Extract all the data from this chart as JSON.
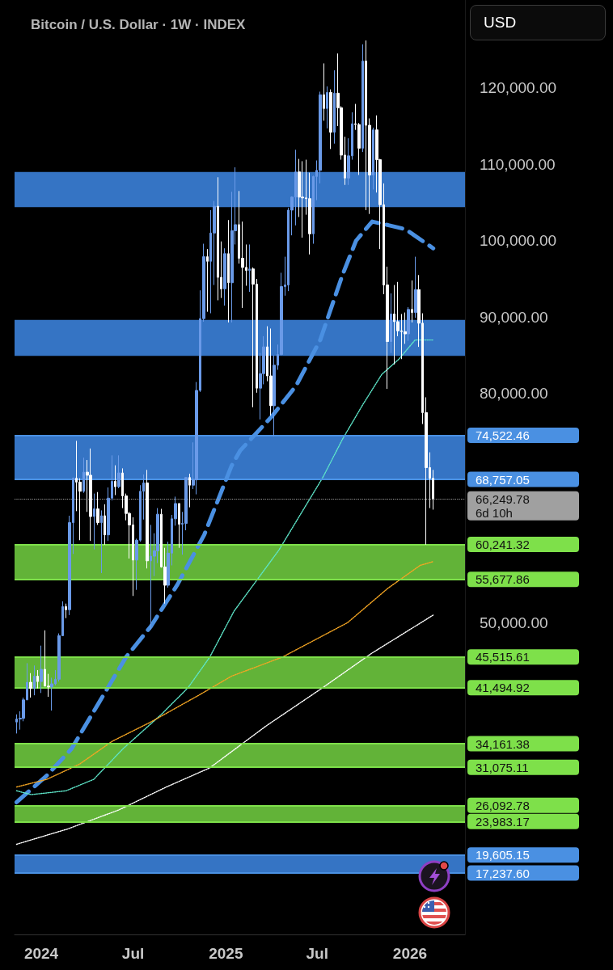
{
  "chart_data": {
    "type": "candlestick",
    "title": "Bitcoin / U.S. Dollar · 1W · INDEX",
    "annotations": [
      "USD"
    ],
    "grid": false,
    "x": [
      "2023-11-13",
      "2023-11-20",
      "2023-11-27",
      "2023-12-04",
      "2023-12-11",
      "2023-12-18",
      "2023-12-25",
      "2024-01-01",
      "2024-01-08",
      "2024-01-15",
      "2024-01-22",
      "2024-01-29",
      "2024-02-05",
      "2024-02-12",
      "2024-02-19",
      "2024-02-26",
      "2024-03-04",
      "2024-03-11",
      "2024-03-18",
      "2024-03-25",
      "2024-04-01",
      "2024-04-08",
      "2024-04-15",
      "2024-04-22",
      "2024-04-29",
      "2024-05-06",
      "2024-05-13",
      "2024-05-20",
      "2024-05-27",
      "2024-06-03",
      "2024-06-10",
      "2024-06-17",
      "2024-06-24",
      "2024-07-01",
      "2024-07-08",
      "2024-07-15",
      "2024-07-22",
      "2024-07-29",
      "2024-08-05",
      "2024-08-12",
      "2024-08-19",
      "2024-08-26",
      "2024-09-02",
      "2024-09-09",
      "2024-09-16",
      "2024-09-23",
      "2024-09-30",
      "2024-10-07",
      "2024-10-14",
      "2024-10-21",
      "2024-10-28",
      "2024-11-04",
      "2024-11-11",
      "2024-11-18",
      "2024-11-25",
      "2024-12-02",
      "2024-12-09",
      "2024-12-16",
      "2024-12-23",
      "2024-12-30",
      "2025-01-06",
      "2025-01-13",
      "2025-01-20",
      "2025-01-27",
      "2025-02-03",
      "2025-02-10",
      "2025-02-17",
      "2025-02-24",
      "2025-03-03",
      "2025-03-10",
      "2025-03-17",
      "2025-03-24",
      "2025-03-31",
      "2025-04-07",
      "2025-04-14",
      "2025-04-21",
      "2025-04-28",
      "2025-05-05",
      "2025-05-12",
      "2025-05-19",
      "2025-05-26",
      "2025-06-02",
      "2025-06-09",
      "2025-06-16",
      "2025-06-23",
      "2025-06-30",
      "2025-07-07",
      "2025-07-14",
      "2025-07-21",
      "2025-07-28",
      "2025-08-04",
      "2025-08-11",
      "2025-08-18",
      "2025-08-25",
      "2025-09-01",
      "2025-09-08",
      "2025-09-15",
      "2025-09-22",
      "2025-09-29",
      "2025-10-06",
      "2025-10-13",
      "2025-10-20",
      "2025-10-27",
      "2025-11-03",
      "2025-11-10",
      "2025-11-17",
      "2025-11-24",
      "2025-12-01",
      "2025-12-08",
      "2025-12-15",
      "2025-12-22",
      "2025-12-29",
      "2026-01-05",
      "2026-01-12",
      "2026-01-19",
      "2026-01-26",
      "2026-02-02",
      "2026-02-09",
      "2026-02-16"
    ],
    "ohlc": [
      [
        37000,
        38000,
        35500,
        37400
      ],
      [
        37400,
        38400,
        36000,
        37500
      ],
      [
        37500,
        40200,
        37100,
        39900
      ],
      [
        39900,
        44700,
        39900,
        42200
      ],
      [
        42200,
        43400,
        40200,
        41400
      ],
      [
        41400,
        44400,
        40500,
        43000
      ],
      [
        43000,
        43800,
        41400,
        42300
      ],
      [
        42300,
        47000,
        40800,
        43900
      ],
      [
        43900,
        49000,
        41700,
        41700
      ],
      [
        41700,
        43300,
        40300,
        41600
      ],
      [
        41600,
        42800,
        38500,
        42000
      ],
      [
        42000,
        43800,
        41800,
        42600
      ],
      [
        42600,
        48600,
        42300,
        48300
      ],
      [
        48300,
        52800,
        48300,
        52100
      ],
      [
        52100,
        52500,
        50600,
        51700
      ],
      [
        51700,
        64000,
        51000,
        63100
      ],
      [
        63100,
        69000,
        59000,
        68900
      ],
      [
        68900,
        73800,
        64600,
        68400
      ],
      [
        68400,
        68900,
        60800,
        67200
      ],
      [
        67200,
        71600,
        67000,
        69700
      ],
      [
        69700,
        71300,
        64500,
        69300
      ],
      [
        69300,
        72800,
        60700,
        63900
      ],
      [
        63900,
        66900,
        59600,
        64900
      ],
      [
        64900,
        67100,
        62800,
        63100
      ],
      [
        63100,
        64700,
        56500,
        64000
      ],
      [
        64000,
        65500,
        60200,
        61500
      ],
      [
        61500,
        67700,
        60700,
        66300
      ],
      [
        66300,
        71900,
        66000,
        68500
      ],
      [
        68500,
        70600,
        66700,
        67800
      ],
      [
        67800,
        71900,
        67600,
        69600
      ],
      [
        69600,
        70200,
        65000,
        66600
      ],
      [
        66600,
        66900,
        63400,
        64300
      ],
      [
        64300,
        64500,
        58400,
        62800
      ],
      [
        62800,
        63800,
        53500,
        58200
      ],
      [
        58200,
        61000,
        54300,
        60800
      ],
      [
        60800,
        68000,
        60600,
        67200
      ],
      [
        67200,
        69400,
        63500,
        68300
      ],
      [
        68300,
        70000,
        57100,
        58100
      ],
      [
        58100,
        62800,
        49100,
        58700
      ],
      [
        58700,
        61700,
        56100,
        59400
      ],
      [
        59400,
        65000,
        57800,
        64200
      ],
      [
        64200,
        64900,
        57200,
        57300
      ],
      [
        57300,
        59800,
        52500,
        54900
      ],
      [
        54900,
        60600,
        54600,
        59100
      ],
      [
        59100,
        64100,
        57500,
        63600
      ],
      [
        63600,
        66500,
        62700,
        65600
      ],
      [
        65600,
        65600,
        59800,
        62900
      ],
      [
        62900,
        64500,
        58900,
        63000
      ],
      [
        63000,
        69000,
        62100,
        69000
      ],
      [
        69000,
        69500,
        65100,
        68000
      ],
      [
        68000,
        73600,
        67500,
        68700
      ],
      [
        68700,
        81500,
        66800,
        80400
      ],
      [
        80400,
        93500,
        80200,
        89800
      ],
      [
        89800,
        99600,
        89400,
        97900
      ],
      [
        97900,
        98900,
        90700,
        97300
      ],
      [
        97300,
        104000,
        90500,
        101000
      ],
      [
        101000,
        105200,
        94200,
        104500
      ],
      [
        104500,
        108300,
        92200,
        95200
      ],
      [
        95200,
        99900,
        92500,
        93700
      ],
      [
        93700,
        99000,
        91500,
        98300
      ],
      [
        98300,
        102700,
        89300,
        94500
      ],
      [
        94500,
        106400,
        89300,
        101300
      ],
      [
        101300,
        109600,
        99500,
        102100
      ],
      [
        102100,
        106500,
        97000,
        97700
      ],
      [
        97700,
        102500,
        91200,
        96500
      ],
      [
        96500,
        99500,
        94100,
        96100
      ],
      [
        96100,
        99500,
        93300,
        96300
      ],
      [
        96300,
        96500,
        78200,
        94300
      ],
      [
        94300,
        95000,
        80100,
        80700
      ],
      [
        80700,
        85300,
        76600,
        82600
      ],
      [
        82600,
        87500,
        81200,
        86100
      ],
      [
        86100,
        88800,
        81600,
        82300
      ],
      [
        82300,
        88500,
        77100,
        78400
      ],
      [
        78400,
        85000,
        74400,
        83700
      ],
      [
        83700,
        86400,
        83100,
        85100
      ],
      [
        85100,
        95800,
        85000,
        94000
      ],
      [
        94000,
        97900,
        92800,
        94200
      ],
      [
        94200,
        104300,
        93400,
        104000
      ],
      [
        104000,
        105800,
        100700,
        105700
      ],
      [
        105700,
        111900,
        102000,
        109000
      ],
      [
        109000,
        110700,
        103100,
        105700
      ],
      [
        105700,
        110400,
        100400,
        105600
      ],
      [
        105600,
        110600,
        103400,
        105500
      ],
      [
        105500,
        108900,
        98200,
        100900
      ],
      [
        100900,
        108500,
        99600,
        108400
      ],
      [
        108400,
        110500,
        105300,
        109200
      ],
      [
        109200,
        119500,
        107500,
        119100
      ],
      [
        119100,
        123200,
        115700,
        117300
      ],
      [
        117300,
        120200,
        114700,
        119400
      ],
      [
        119400,
        119800,
        112000,
        114200
      ],
      [
        114200,
        122300,
        112700,
        119300
      ],
      [
        119300,
        124500,
        115000,
        117400
      ],
      [
        117400,
        117600,
        110600,
        111200
      ],
      [
        111200,
        113600,
        107300,
        108200
      ],
      [
        108200,
        113400,
        107300,
        111100
      ],
      [
        111100,
        116800,
        110600,
        115300
      ],
      [
        115300,
        117900,
        114500,
        115200
      ],
      [
        115200,
        115400,
        108600,
        112100
      ],
      [
        112100,
        125700,
        111600,
        123500
      ],
      [
        123500,
        126200,
        104000,
        115100
      ],
      [
        115100,
        116000,
        103500,
        108600
      ],
      [
        108600,
        114800,
        106700,
        114500
      ],
      [
        114500,
        116400,
        106300,
        110600
      ],
      [
        110600,
        110700,
        98900,
        104700
      ],
      [
        104700,
        107500,
        93000,
        94200
      ],
      [
        94200,
        96600,
        80600,
        86800
      ],
      [
        86800,
        93100,
        85300,
        90400
      ],
      [
        90400,
        94200,
        83800,
        89400
      ],
      [
        89400,
        94600,
        87500,
        88200
      ],
      [
        88200,
        90400,
        84500,
        88100
      ],
      [
        88100,
        90600,
        86500,
        87800
      ],
      [
        87800,
        91300,
        86900,
        91000
      ],
      [
        91000,
        94800,
        89300,
        90600
      ],
      [
        90600,
        97900,
        89900,
        93600
      ],
      [
        93600,
        95500,
        86100,
        89200
      ],
      [
        89200,
        90500,
        76000,
        77500
      ],
      [
        77500,
        79500,
        60200,
        70300
      ],
      [
        70300,
        72300,
        65000,
        68900
      ],
      [
        68900,
        70000,
        64800,
        66249.78
      ]
    ],
    "colors": [
      "#6a9ae8",
      "#6a9ae8",
      "#6a9ae8",
      "#6a9ae8",
      "#ffffff",
      "#6a9ae8",
      "#ffffff",
      "#6a9ae8",
      "#ffffff",
      "#ffffff",
      "#6a9ae8",
      "#6a9ae8",
      "#6a9ae8",
      "#6a9ae8",
      "#ffffff",
      "#6a9ae8",
      "#6a9ae8",
      "#ffffff",
      "#ffffff",
      "#6a9ae8",
      "#ffffff",
      "#ffffff",
      "#6a9ae8",
      "#ffffff",
      "#6a9ae8",
      "#ffffff",
      "#6a9ae8",
      "#6a9ae8",
      "#ffffff",
      "#6a9ae8",
      "#ffffff",
      "#ffffff",
      "#ffffff",
      "#ffffff",
      "#6a9ae8",
      "#6a9ae8",
      "#6a9ae8",
      "#ffffff",
      "#6a9ae8",
      "#6a9ae8",
      "#6a9ae8",
      "#ffffff",
      "#ffffff",
      "#6a9ae8",
      "#6a9ae8",
      "#6a9ae8",
      "#ffffff",
      "#6a9ae8",
      "#6a9ae8",
      "#ffffff",
      "#6a9ae8",
      "#6a9ae8",
      "#6a9ae8",
      "#6a9ae8",
      "#ffffff",
      "#6a9ae8",
      "#6a9ae8",
      "#ffffff",
      "#ffffff",
      "#6a9ae8",
      "#ffffff",
      "#6a9ae8",
      "#6a9ae8",
      "#ffffff",
      "#ffffff",
      "#ffffff",
      "#6a9ae8",
      "#ffffff",
      "#ffffff",
      "#6a9ae8",
      "#6a9ae8",
      "#ffffff",
      "#ffffff",
      "#6a9ae8",
      "#6a9ae8",
      "#6a9ae8",
      "#6a9ae8",
      "#6a9ae8",
      "#6a9ae8",
      "#6a9ae8",
      "#ffffff",
      "#ffffff",
      "#ffffff",
      "#ffffff",
      "#6a9ae8",
      "#6a9ae8",
      "#6a9ae8",
      "#ffffff",
      "#6a9ae8",
      "#ffffff",
      "#6a9ae8",
      "#ffffff",
      "#ffffff",
      "#ffffff",
      "#6a9ae8",
      "#6a9ae8",
      "#ffffff",
      "#ffffff",
      "#6a9ae8",
      "#ffffff",
      "#ffffff",
      "#6a9ae8",
      "#ffffff",
      "#ffffff",
      "#ffffff",
      "#ffffff",
      "#6a9ae8",
      "#ffffff",
      "#ffffff",
      "#ffffff",
      "#ffffff",
      "#6a9ae8",
      "#ffffff",
      "#6a9ae8",
      "#ffffff",
      "#ffffff",
      "#ffffff",
      "#ffffff",
      "#ffffff"
    ],
    "series": [
      {
        "type": "line",
        "color": "#4a90e2",
        "line_style": "dashed",
        "x": [
          "2023-11-13",
          "2024-01-12",
          "2024-03-01",
          "2024-04-24",
          "2024-06-17",
          "2024-08-05",
          "2024-09-27",
          "2024-11-19",
          "2025-01-12",
          "2025-01-29",
          "2025-04-02",
          "2025-05-20",
          "2025-07-07",
          "2025-08-20",
          "2025-09-16",
          "2025-10-18",
          "2025-11-21",
          "2025-12-23",
          "2026-02-16"
        ],
        "values": [
          26500,
          30000,
          33500,
          39500,
          45500,
          49500,
          55000,
          61500,
          70500,
          72500,
          77000,
          81000,
          87000,
          95500,
          100000,
          102500,
          102000,
          101500,
          99000
        ]
      },
      {
        "type": "line",
        "color": "#5ee6c9",
        "line_style": "dotted",
        "x": [
          "2023-11-13",
          "2023-12-12",
          "2024-02-19",
          "2024-04-14",
          "2024-06-11",
          "2024-08-26",
          "2024-10-18",
          "2024-11-30",
          "2025-01-17",
          "2025-04-16",
          "2025-07-12",
          "2025-08-20",
          "2025-09-29",
          "2025-11-06",
          "2025-12-10",
          "2026-01-11",
          "2026-02-16"
        ],
        "values": [
          28000,
          27500,
          28000,
          29500,
          33500,
          38000,
          41500,
          45500,
          51500,
          59500,
          69000,
          74000,
          78500,
          82500,
          84500,
          87000,
          87000
        ]
      },
      {
        "type": "line",
        "color": "#f5a623",
        "line_style": "dotted",
        "x": [
          "2023-11-13",
          "2024-01-12",
          "2024-03-17",
          "2024-05-21",
          "2024-08-05",
          "2024-11-08",
          "2025-01-12",
          "2025-04-23",
          "2025-08-30",
          "2025-11-18",
          "2026-01-21",
          "2026-02-16"
        ],
        "values": [
          28500,
          29500,
          31500,
          34500,
          37000,
          40500,
          43000,
          45500,
          50000,
          54500,
          57500,
          58000
        ]
      },
      {
        "type": "line",
        "color": "#ffffff",
        "line_style": "dotted",
        "x": [
          "2023-11-13",
          "2024-02-22",
          "2024-06-03",
          "2024-09-05",
          "2024-11-30",
          "2025-03-22",
          "2025-07-12",
          "2025-10-17",
          "2026-02-16"
        ],
        "values": [
          21000,
          23000,
          25500,
          28500,
          31000,
          36500,
          41500,
          46000,
          51000
        ]
      }
    ],
    "xlim": [
      "2023-11-09",
      "2026-04-20"
    ],
    "xticks": [
      {
        "value": "2024-01-01",
        "label": "2024"
      },
      {
        "value": "2024-07-01",
        "label": "Jul"
      },
      {
        "value": "2025-01-01",
        "label": "2025"
      },
      {
        "value": "2025-07-01",
        "label": "Jul"
      },
      {
        "value": "2026-01-01",
        "label": "2026"
      }
    ],
    "ylim": [
      9200,
      131500
    ],
    "yticks": [
      {
        "value": 50000,
        "label": "50,000.00"
      },
      {
        "value": 80000,
        "label": "80,000.00"
      },
      {
        "value": 90000,
        "label": "90,000.00"
      },
      {
        "value": 100000,
        "label": "100,000.00"
      },
      {
        "value": 110000,
        "label": "110,000.00"
      },
      {
        "value": 120000,
        "label": "120,000.00"
      }
    ],
    "bands": [
      {
        "axis": "y",
        "from": 104400,
        "to": 108980,
        "color": "#3574c4"
      },
      {
        "axis": "y",
        "from": 84920,
        "to": 89630,
        "color": "#3574c4"
      },
      {
        "axis": "y",
        "from": 68757.05,
        "to": 74522.46,
        "color": "#3574c4"
      },
      {
        "axis": "y",
        "from": 55677.86,
        "to": 60241.32,
        "color": "#62b338"
      },
      {
        "axis": "y",
        "from": 41494.92,
        "to": 45515.61,
        "color": "#62b338"
      },
      {
        "axis": "y",
        "from": 31075.11,
        "to": 34161.38,
        "color": "#62b338"
      },
      {
        "axis": "y",
        "from": 23983.17,
        "to": 26092.78,
        "color": "#62b338"
      },
      {
        "axis": "y",
        "from": 17237.6,
        "to": 19605.15,
        "color": "#3574c4"
      }
    ],
    "ref_lines": [
      {
        "axis": "y",
        "value": 74522.46,
        "label": "74,522.46",
        "color": "#4a90e2"
      },
      {
        "axis": "y",
        "value": 68757.05,
        "label": "68,757.05",
        "color": "#4a90e2"
      },
      {
        "axis": "y",
        "value": 66249.78,
        "label": "66,249.78\n6d 10h",
        "color": "#a0a0a0",
        "line_style": "dotted"
      },
      {
        "axis": "y",
        "value": 60241.32,
        "label": "60,241.32",
        "color": "#7ee04a"
      },
      {
        "axis": "y",
        "value": 55677.86,
        "label": "55,677.86",
        "color": "#7ee04a"
      },
      {
        "axis": "y",
        "value": 45515.61,
        "label": "45,515.61",
        "color": "#7ee04a"
      },
      {
        "axis": "y",
        "value": 41494.92,
        "label": "41,494.92",
        "color": "#7ee04a"
      },
      {
        "axis": "y",
        "value": 34161.38,
        "label": "34,161.38",
        "color": "#7ee04a"
      },
      {
        "axis": "y",
        "value": 31075.11,
        "label": "31,075.11",
        "color": "#7ee04a"
      },
      {
        "axis": "y",
        "value": 26092.78,
        "label": "26,092.78",
        "color": "#7ee04a"
      },
      {
        "axis": "y",
        "value": 23983.17,
        "label": "23,983.17",
        "color": "#7ee04a"
      },
      {
        "axis": "y",
        "value": 19605.15,
        "label": "19,605.15",
        "color": "#4a90e2"
      },
      {
        "axis": "y",
        "value": 17237.6,
        "label": "17,237.60",
        "color": "#4a90e2"
      }
    ]
  }
}
